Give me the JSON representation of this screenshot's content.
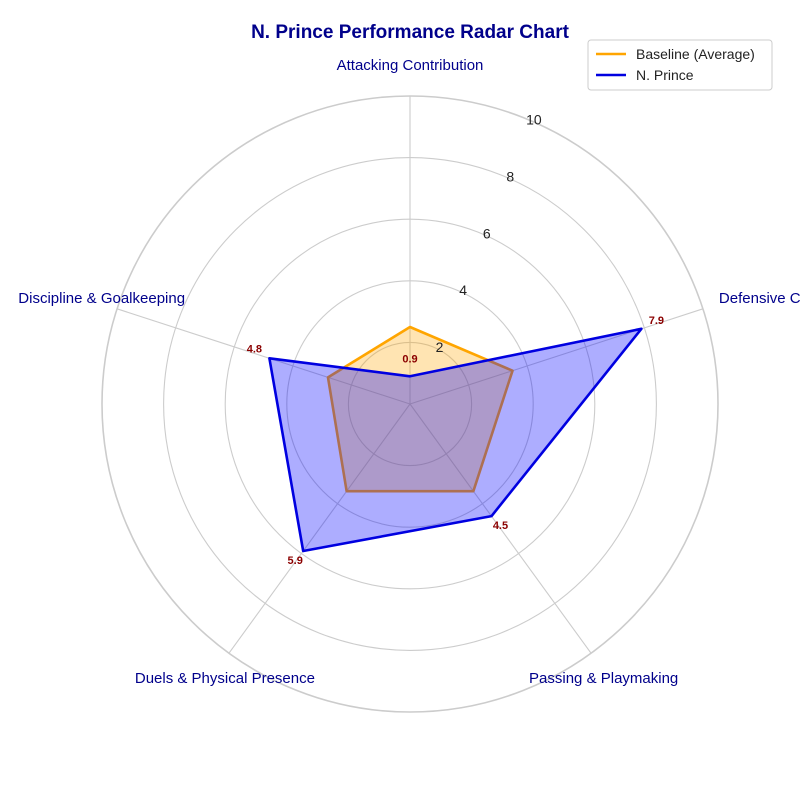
{
  "chart_data": {
    "type": "radar",
    "title": "N. Prince Performance Radar Chart",
    "categories": [
      "Attacking Contribution",
      "Defensive Capability",
      "Passing & Playmaking",
      "Duels & Physical Presence",
      "Discipline & Goalkeeping"
    ],
    "series": [
      {
        "name": "Baseline (Average)",
        "values": [
          2.5,
          3.5,
          3.5,
          3.5,
          2.8
        ],
        "color": "#FFA500",
        "fill": "#FFA500"
      },
      {
        "name": "N. Prince",
        "values": [
          0.9,
          7.9,
          4.5,
          5.9,
          4.8
        ],
        "color": "#0000E0",
        "fill": "#0000FF"
      }
    ],
    "data_labels": [
      "0.9",
      "7.9",
      "4.5",
      "5.9",
      "4.8"
    ],
    "radial_ticks": [
      2,
      4,
      6,
      8,
      10
    ],
    "radial_tick_labels": [
      "2",
      "4",
      "6",
      "8",
      "10"
    ],
    "rlim": [
      0,
      10
    ],
    "grid": true,
    "legend_position": "top-right",
    "title_color": "#00008B",
    "axis_label_color": "#00008B",
    "data_label_color": "#8B0000",
    "grid_color": "#CCCCCC"
  }
}
